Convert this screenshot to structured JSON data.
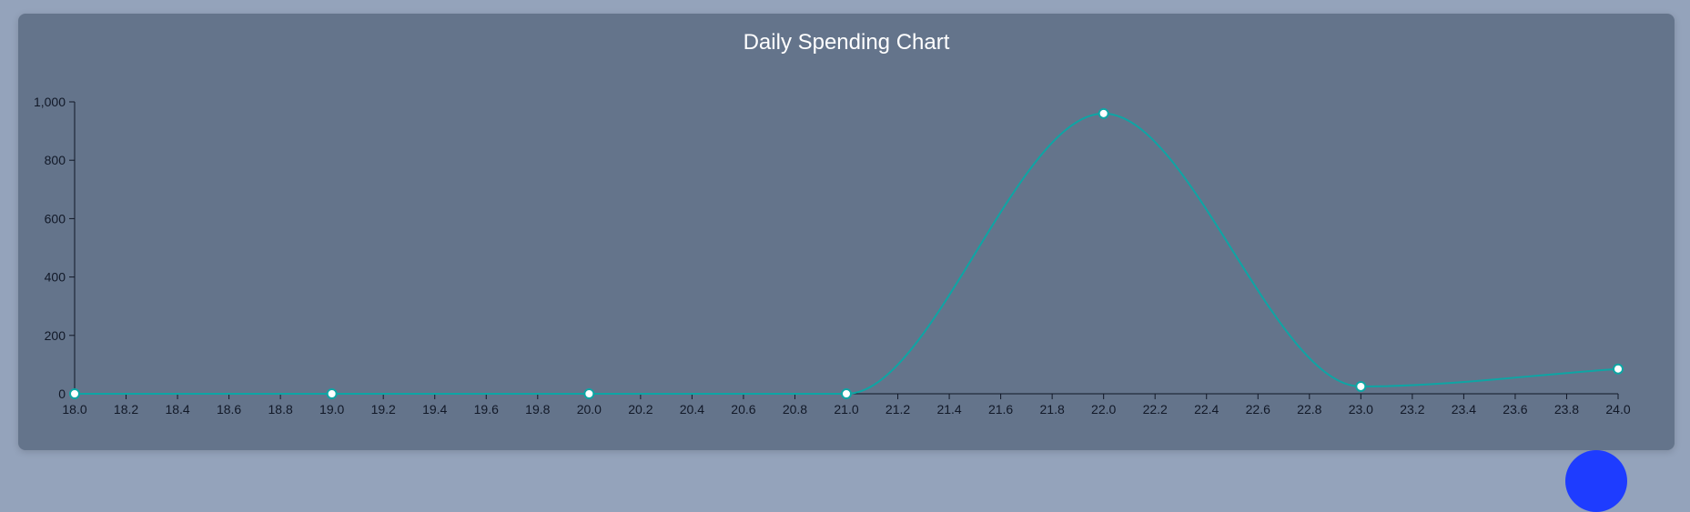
{
  "page": {
    "title": "Daily Spending Chart"
  },
  "colors": {
    "page_bg": "#94a3bb",
    "card_bg": "#64748b",
    "line": "#0ea5a4",
    "marker_fill": "#ffffff",
    "fab": "#1e3cff"
  },
  "chart_data": {
    "type": "line",
    "title": "Daily Spending Chart",
    "xlabel": "",
    "ylabel": "",
    "x": [
      18,
      19,
      20,
      21,
      22,
      23,
      24
    ],
    "series": [
      {
        "values": [
          0,
          0,
          0,
          0,
          960,
          25,
          85
        ]
      }
    ],
    "xlim": [
      18,
      24
    ],
    "ylim": [
      0,
      1000
    ],
    "x_ticks": [
      "18.0",
      "18.2",
      "18.4",
      "18.6",
      "18.8",
      "19.0",
      "19.2",
      "19.4",
      "19.6",
      "19.8",
      "20.0",
      "20.2",
      "20.4",
      "20.6",
      "20.8",
      "21.0",
      "21.2",
      "21.4",
      "21.6",
      "21.8",
      "22.0",
      "22.2",
      "22.4",
      "22.6",
      "22.8",
      "23.0",
      "23.2",
      "23.4",
      "23.6",
      "23.8",
      "24.0"
    ],
    "y_ticks": [
      "0",
      "200",
      "400",
      "600",
      "800",
      "1,000"
    ],
    "grid": false,
    "curve": "smooth"
  }
}
